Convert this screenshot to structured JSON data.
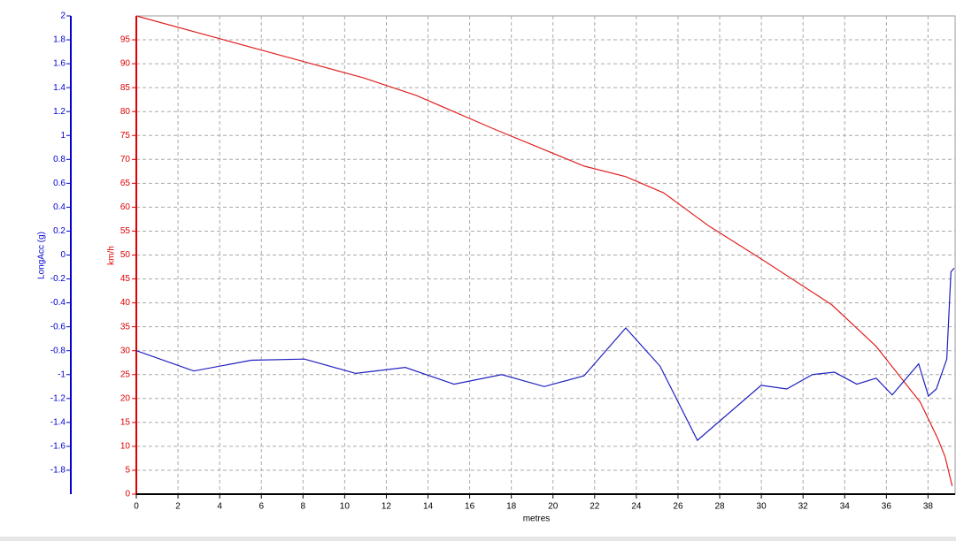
{
  "chart_data": {
    "type": "line",
    "xlabel": "metres",
    "ylabel": "km/h",
    "y2label": "LongAcc (g)",
    "xlim": [
      0,
      39.3
    ],
    "xticks": [
      0,
      2,
      4,
      6,
      8,
      10,
      12,
      14,
      16,
      18,
      20,
      22,
      24,
      26,
      28,
      30,
      32,
      34,
      36,
      38
    ],
    "ylim": [
      0,
      100
    ],
    "yticks": [
      0,
      5,
      10,
      15,
      20,
      25,
      30,
      35,
      40,
      45,
      50,
      55,
      60,
      65,
      70,
      75,
      80,
      85,
      90,
      95
    ],
    "y2lim": [
      -2,
      2
    ],
    "y2ticks": [
      -1.8,
      -1.6,
      -1.4,
      -1.2,
      -1,
      -0.8,
      -0.6,
      -0.4,
      -0.2,
      0,
      0.2,
      0.4,
      0.6,
      0.8,
      1,
      1.2,
      1.4,
      1.6,
      1.8,
      2
    ],
    "grid": true,
    "y_color": "#e00000",
    "y2_color": "#0000d0",
    "series": [
      {
        "color": "#e02020",
        "x": [
          0,
          4.03,
          8.07,
          10.87,
          13.42,
          17.25,
          21.49,
          23.49,
          25.31,
          27.44,
          29.99,
          33.38,
          35.51,
          37.63,
          38.48,
          38.82,
          39.16
        ],
        "values": [
          100,
          95.2,
          90.4,
          87.1,
          83.4,
          76.2,
          68.6,
          66.4,
          63.0,
          56.2,
          49.2,
          39.6,
          30.9,
          19.2,
          11.5,
          7.8,
          1.7
        ]
      },
      {
        "color": "#2020c0",
        "axis": "y2",
        "x": [
          0,
          2.76,
          5.52,
          8.07,
          10.53,
          12.91,
          15.25,
          17.54,
          19.58,
          21.49,
          23.49,
          25.14,
          26.93,
          29.99,
          31.22,
          32.45,
          33.51,
          34.58,
          35.51,
          36.28,
          37.55,
          38.02,
          38.4,
          38.9,
          39.1,
          39.25
        ],
        "values": [
          -0.8,
          -0.97,
          -0.88,
          -0.87,
          -0.99,
          -0.94,
          -1.08,
          -1.0,
          -1.1,
          -1.01,
          -0.61,
          -0.93,
          -1.55,
          -1.09,
          -1.12,
          -1.0,
          -0.98,
          -1.08,
          -1.03,
          -1.17,
          -0.91,
          -1.18,
          -1.12,
          -0.87,
          -0.14,
          -0.11
        ]
      }
    ]
  }
}
